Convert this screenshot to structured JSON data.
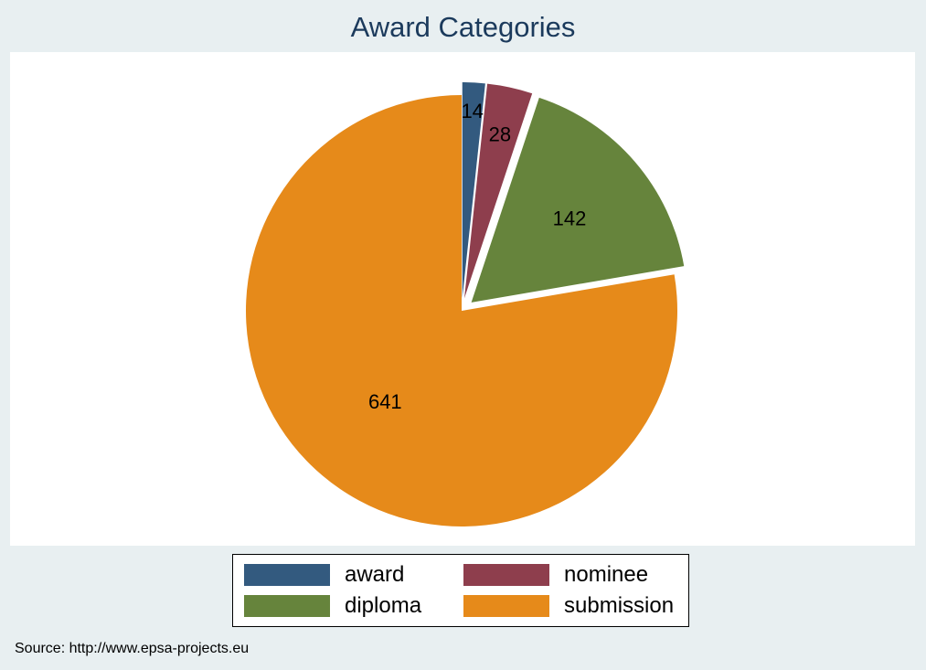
{
  "chart_data": {
    "type": "pie",
    "title": "Award Categories",
    "categories": [
      "award",
      "nominee",
      "diploma",
      "submission"
    ],
    "values": [
      14,
      28,
      142,
      641
    ],
    "colors": [
      "#335a7f",
      "#8e3e4d",
      "#66843c",
      "#e68a1a"
    ],
    "exploded": [
      true,
      true,
      true,
      false
    ],
    "start_angle_deg": 0,
    "direction": "clockwise",
    "legend": {
      "placement": "bottom",
      "columns": 2,
      "entries": [
        "award",
        "nominee",
        "diploma",
        "submission"
      ]
    },
    "note": "Source: http://www.epsa-projects.eu"
  }
}
